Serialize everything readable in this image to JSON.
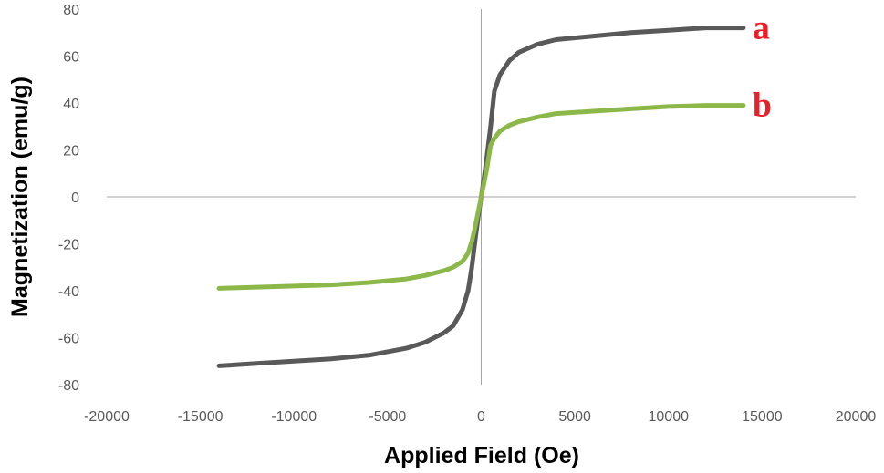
{
  "chart_data": {
    "type": "line",
    "title": "",
    "xlabel": "Applied Field (Oe)",
    "ylabel": "Magnetization (emu/g)",
    "xlim": [
      -20000,
      20000
    ],
    "ylim": [
      -80,
      80
    ],
    "xticks": [
      -20000,
      -15000,
      -10000,
      -5000,
      0,
      5000,
      10000,
      15000,
      20000
    ],
    "yticks": [
      -80,
      -60,
      -40,
      -20,
      0,
      20,
      40,
      60,
      80
    ],
    "grid": false,
    "colors": {
      "a": "#595959",
      "b": "#8cb84a",
      "label": "#e8202a"
    },
    "series": [
      {
        "name": "a",
        "x": [
          -14000,
          -12000,
          -10000,
          -8000,
          -6000,
          -4000,
          -3000,
          -2000,
          -1500,
          -1000,
          -700,
          -500,
          -300,
          -150,
          0,
          150,
          300,
          500,
          700,
          1000,
          1500,
          2000,
          3000,
          4000,
          6000,
          8000,
          10000,
          12000,
          14000
        ],
        "y": [
          -72,
          -71,
          -70,
          -69,
          -67.5,
          -64.5,
          -62,
          -58,
          -55,
          -48,
          -40,
          -30,
          -17,
          -8,
          0,
          8,
          17,
          30,
          45,
          52,
          58,
          61.5,
          65,
          67,
          68.5,
          70,
          71,
          72,
          72
        ]
      },
      {
        "name": "b",
        "x": [
          -14000,
          -12000,
          -10000,
          -8000,
          -6000,
          -4000,
          -3000,
          -2000,
          -1500,
          -1000,
          -700,
          -500,
          -300,
          -150,
          0,
          150,
          300,
          500,
          700,
          1000,
          1500,
          2000,
          3000,
          4000,
          6000,
          8000,
          10000,
          12000,
          14000
        ],
        "y": [
          -39,
          -38.5,
          -38,
          -37.5,
          -36.5,
          -35,
          -33.5,
          -31.5,
          -30,
          -27.5,
          -24,
          -19,
          -12,
          -6,
          0,
          6,
          12,
          22,
          25,
          28,
          30.5,
          32,
          34,
          35.5,
          36.5,
          37.5,
          38.5,
          39,
          39
        ]
      }
    ]
  }
}
